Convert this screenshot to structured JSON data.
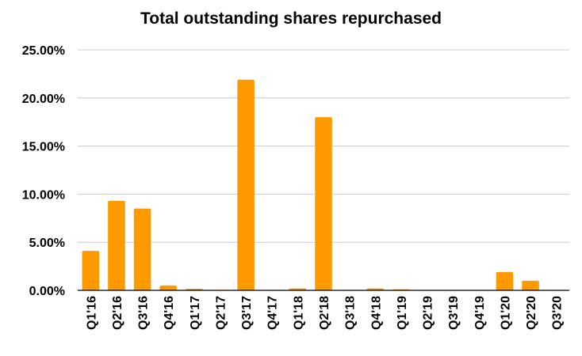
{
  "chart_data": {
    "type": "bar",
    "title": "Total outstanding shares repurchased",
    "xlabel": "",
    "ylabel": "",
    "categories": [
      "Q1'16",
      "Q2'16",
      "Q3'16",
      "Q4'16",
      "Q1'17",
      "Q2'17",
      "Q3'17",
      "Q4'17",
      "Q1'18",
      "Q2'18",
      "Q3'18",
      "Q4'18",
      "Q1'19",
      "Q2'19",
      "Q3'19",
      "Q4'19",
      "Q1'20",
      "Q2'20",
      "Q3'20"
    ],
    "values": [
      4.1,
      9.3,
      8.5,
      0.5,
      0.15,
      0.05,
      21.9,
      0.0,
      0.2,
      18.0,
      0.0,
      0.2,
      0.1,
      0.0,
      0.0,
      0.0,
      1.9,
      1.0,
      0.0
    ],
    "ylim": [
      0,
      25
    ],
    "y_ticks": [
      "0.00%",
      "5.00%",
      "10.00%",
      "15.00%",
      "20.00%",
      "25.00%"
    ],
    "y_tick_values": [
      0,
      5,
      10,
      15,
      20,
      25
    ],
    "grid": true,
    "legend": "none",
    "bar_color": "#ff9900"
  }
}
